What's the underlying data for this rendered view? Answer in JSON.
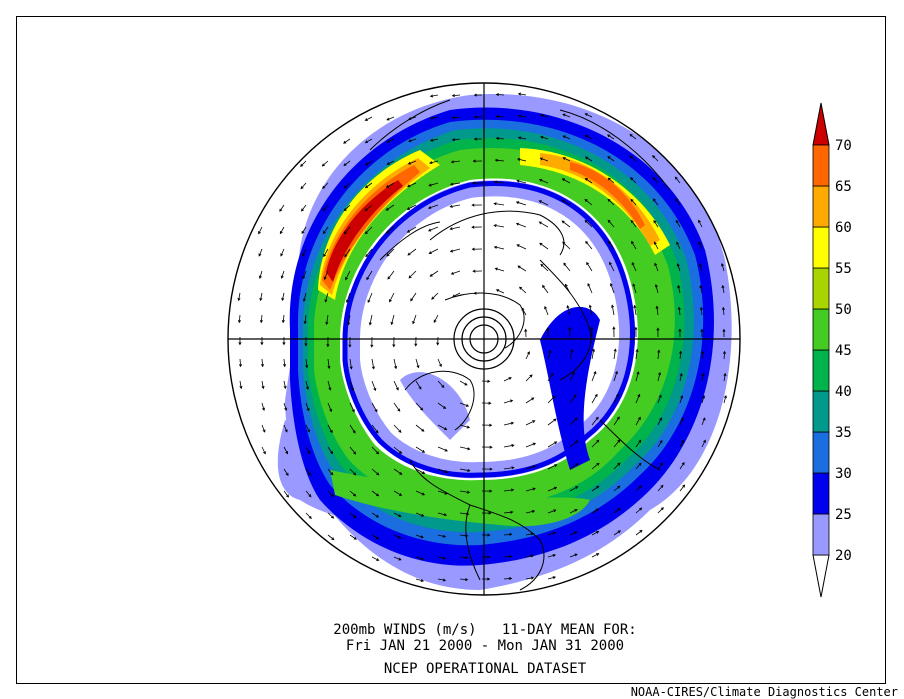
{
  "caption": {
    "line1": "200mb WINDS (m/s)   11-DAY MEAN FOR:",
    "line2": "Fri JAN 21 2000 - Mon JAN 31 2000",
    "line3": "NCEP OPERATIONAL DATASET"
  },
  "credit": "NOAA-CIRES/Climate Diagnostics Center",
  "map": {
    "projection": "north polar stereographic",
    "field": "200mb wind speed (m/s)",
    "overlay": "wind vectors",
    "background_color": "#ffffff"
  },
  "colorbar": {
    "labels": [
      "20",
      "25",
      "30",
      "35",
      "40",
      "45",
      "50",
      "55",
      "60",
      "65",
      "70"
    ],
    "bins": [
      {
        "range": "<20",
        "color": "#ffffff"
      },
      {
        "range": "20-25",
        "color": "#9999ff"
      },
      {
        "range": "25-30",
        "color": "#0000ee"
      },
      {
        "range": "30-35",
        "color": "#1a6ee0"
      },
      {
        "range": "35-40",
        "color": "#00998c"
      },
      {
        "range": "40-45",
        "color": "#00b34a"
      },
      {
        "range": "45-50",
        "color": "#44cc22"
      },
      {
        "range": "50-55",
        "color": "#aad400"
      },
      {
        "range": "55-60",
        "color": "#ffff00"
      },
      {
        "range": "60-65",
        "color": "#ffaa00"
      },
      {
        "range": "65-70",
        "color": "#ff6600"
      },
      {
        "range": ">70",
        "color": "#cc0000"
      }
    ]
  }
}
